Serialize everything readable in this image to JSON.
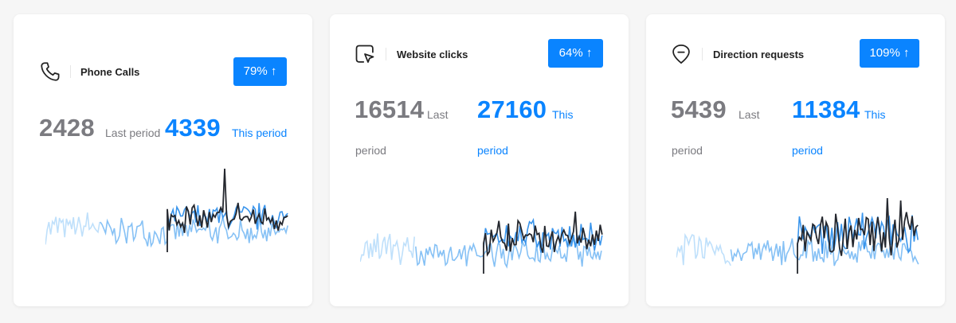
{
  "colors": {
    "accent": "#0a84ff",
    "last_period_light": "#bfe0fb",
    "last_period_mid": "#86c1f5",
    "this_period_blue": "#3a95ec",
    "this_period_dark": "#24272e"
  },
  "cards": [
    {
      "icon": "phone-icon",
      "title": "Phone Calls",
      "badge": "79% ↑",
      "last_value": "2428",
      "last_label": "Last period",
      "this_value": "4339",
      "this_label": "This period"
    },
    {
      "icon": "cursor-click-icon",
      "title": "Website clicks",
      "badge": "64% ↑",
      "last_value": "16514",
      "last_label_1": "Last",
      "last_label_2": "period",
      "this_value": "27160",
      "this_label_1": "This",
      "this_label_2": "period"
    },
    {
      "icon": "map-pin-icon",
      "title": "Direction requests",
      "badge": "109% ↑",
      "last_value": "5439",
      "last_label_1": "Last",
      "last_label_2": "period",
      "this_value": "11384",
      "this_label_1": "This",
      "this_label_2": "period"
    }
  ]
}
